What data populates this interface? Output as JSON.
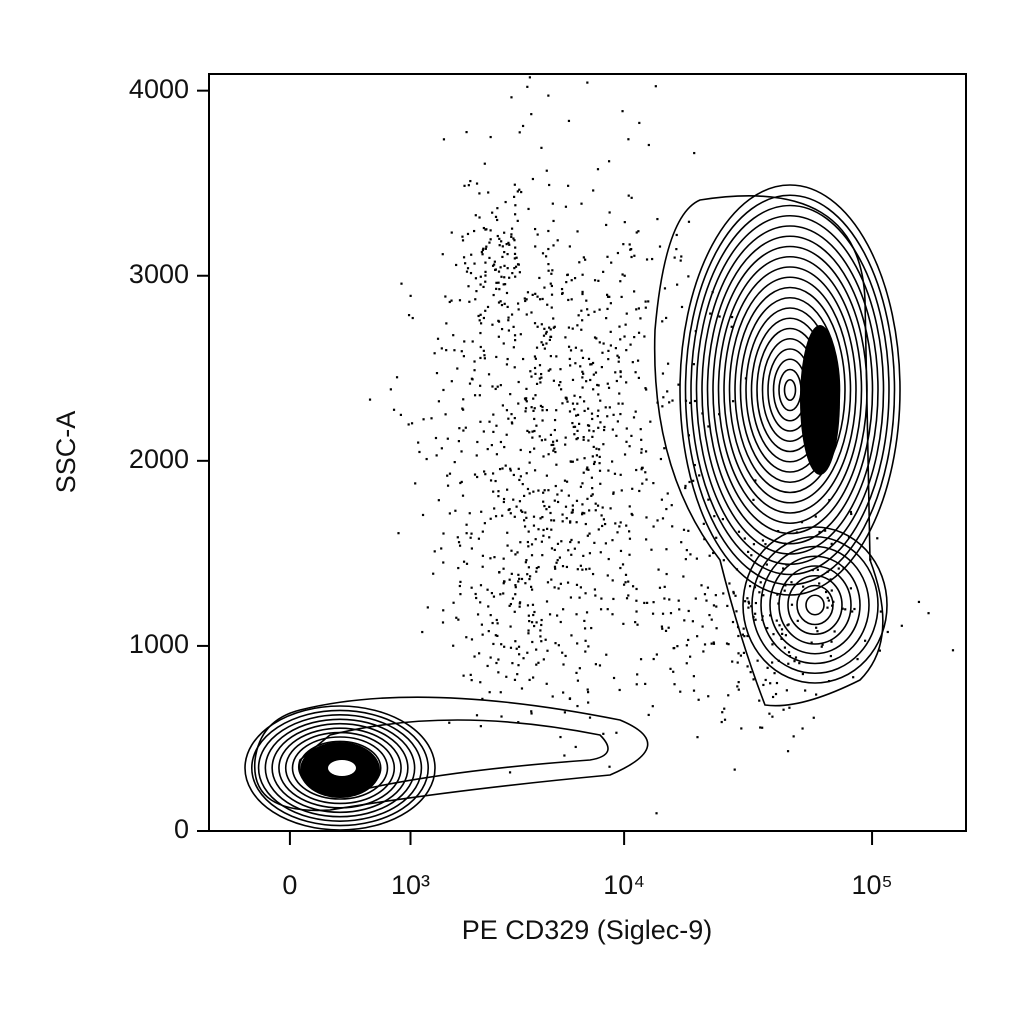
{
  "chart_data": {
    "type": "contour",
    "x_label": "PE CD329 (Siglec-9)",
    "y_label": "SSC-A",
    "xscale": "biexponential",
    "xlim": [
      -545,
      236000
    ],
    "xticks": [
      0,
      {
        "value": 1000,
        "label": "10³"
      },
      {
        "value": 10000,
        "label": "10⁴"
      },
      {
        "value": 100000,
        "label": "10⁵"
      }
    ],
    "ylim": [
      0,
      4090
    ],
    "yticks": [
      0,
      1000,
      2000,
      3000,
      4000
    ],
    "color": "#000000"
  }
}
